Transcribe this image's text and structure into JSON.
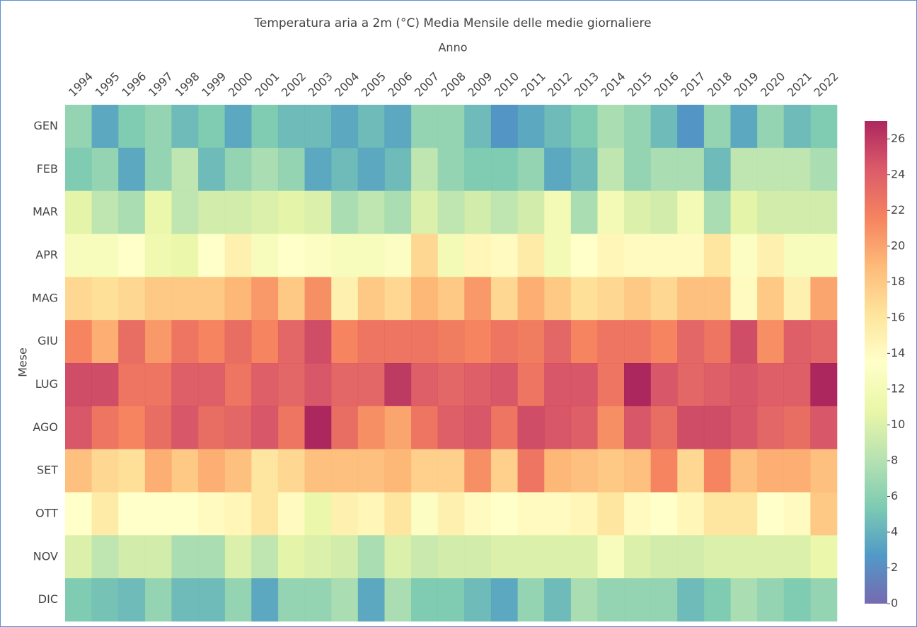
{
  "chart_data": {
    "type": "heatmap",
    "title": "Temperatura aria a 2m (°C) Media Mensile delle medie giornaliere",
    "x_label": "Anno",
    "y_label": "Mese",
    "x": [
      1994,
      1995,
      1996,
      1997,
      1998,
      1999,
      2000,
      2001,
      2002,
      2003,
      2004,
      2005,
      2006,
      2007,
      2008,
      2009,
      2010,
      2011,
      2012,
      2013,
      2014,
      2015,
      2016,
      2017,
      2018,
      2019,
      2020,
      2021,
      2022
    ],
    "categories": [
      "GEN",
      "FEB",
      "MAR",
      "APR",
      "MAG",
      "GIU",
      "LUG",
      "AGO",
      "SET",
      "OTT",
      "NOV",
      "DIC"
    ],
    "values": [
      [
        6.5,
        3.5,
        5.5,
        6.5,
        4.5,
        5.5,
        3.5,
        5.5,
        4.5,
        4.5,
        3.5,
        4.5,
        3.5,
        6.5,
        6.5,
        4.5,
        2.5,
        3.5,
        4.5,
        5.5,
        7.5,
        6.5,
        4.5,
        2.5,
        6.5,
        3.5,
        6.5,
        4.5,
        5.5
      ],
      [
        5.5,
        6.5,
        3.5,
        6.5,
        8.5,
        4.5,
        6.5,
        7.5,
        6.5,
        3.5,
        4.5,
        3.5,
        4.5,
        8.5,
        6.5,
        5.5,
        5.5,
        6.5,
        3.5,
        4.5,
        8.5,
        6.5,
        7.5,
        7.5,
        4.5,
        8.5,
        8.5,
        8.5,
        7.5
      ],
      [
        10.5,
        8.5,
        7.5,
        11,
        8.5,
        9.5,
        9.5,
        10,
        10.5,
        10,
        7.5,
        8.5,
        7.5,
        10,
        8.5,
        9.5,
        8.5,
        9.5,
        12,
        7.5,
        12,
        10,
        9.5,
        12,
        7.5,
        10.5,
        9.5,
        9.5,
        9.5
      ],
      [
        12.5,
        12.5,
        13.5,
        11.5,
        11,
        13.5,
        15,
        12.5,
        13.5,
        13,
        12.5,
        12.5,
        13,
        17,
        12,
        14.5,
        14,
        15.5,
        12,
        13.5,
        14.5,
        14,
        14,
        14,
        16,
        13,
        15,
        12.5,
        12.5
      ],
      [
        17,
        16.5,
        17,
        18,
        18,
        18,
        19,
        20.5,
        18,
        21,
        15,
        18,
        17,
        19,
        18,
        20.5,
        17,
        19.5,
        18,
        16.5,
        17,
        18,
        17,
        18.5,
        18.5,
        14,
        18,
        15,
        20
      ],
      [
        21.5,
        19.5,
        23,
        20.5,
        22.5,
        21.5,
        23,
        21.5,
        23.5,
        25,
        21.5,
        22.5,
        22.5,
        22.5,
        22,
        21.5,
        22.5,
        22,
        23.5,
        21.5,
        22.5,
        22.5,
        21.5,
        23.5,
        22.5,
        25,
        21,
        24,
        23.5
      ],
      [
        25,
        25,
        22.5,
        22.5,
        24,
        24,
        22.5,
        24,
        23.5,
        24.5,
        23.5,
        23.5,
        26,
        24,
        23.5,
        24,
        24.5,
        22.5,
        24.5,
        24.5,
        22.5,
        27,
        24.5,
        23.5,
        24,
        24.5,
        24,
        24,
        27
      ],
      [
        24.5,
        22.5,
        21.5,
        23,
        24.5,
        23,
        23.5,
        24.5,
        22.5,
        27,
        23,
        21,
        20,
        22.5,
        24,
        24.5,
        22.5,
        25,
        24.5,
        24,
        21,
        24.5,
        23,
        25,
        25,
        24.5,
        23.5,
        23,
        24.5
      ],
      [
        18.5,
        17,
        16.5,
        19.5,
        18,
        19.5,
        18.5,
        16,
        17,
        18.5,
        18.5,
        18.5,
        19,
        17.5,
        17.5,
        21,
        17.5,
        22.5,
        19,
        18.5,
        18,
        18.5,
        21.5,
        17,
        21.5,
        18.5,
        19.5,
        19.5,
        18.5
      ],
      [
        13.5,
        15.5,
        13.5,
        13.5,
        13.5,
        14,
        14.5,
        16,
        14,
        11,
        15,
        14.5,
        16,
        13,
        15,
        14,
        13.5,
        14,
        14,
        14.5,
        16,
        14,
        13.5,
        14.5,
        16,
        16,
        13.5,
        14,
        18
      ],
      [
        10,
        8.5,
        9.5,
        9.5,
        7.5,
        7.5,
        10,
        8.5,
        10.5,
        10,
        9.5,
        7.5,
        10,
        9,
        9.5,
        9.5,
        10,
        10,
        10,
        10,
        12.5,
        10,
        9.5,
        9.5,
        10,
        10,
        10,
        10,
        11
      ],
      [
        5.5,
        5,
        4.5,
        6.5,
        4.5,
        4.5,
        6.5,
        3.5,
        6.5,
        6.5,
        7.5,
        3.5,
        7.5,
        5.5,
        5.5,
        4.5,
        3.5,
        6.5,
        4.5,
        7.5,
        6.5,
        6.5,
        6.5,
        4.5,
        5.5,
        7.5,
        6.5,
        5.5,
        6.5
      ]
    ],
    "zlim": [
      0,
      27
    ],
    "zticks": [
      0,
      2,
      4,
      6,
      8,
      10,
      12,
      14,
      16,
      18,
      20,
      22,
      24,
      26
    ],
    "colorscale": [
      "#5e4fa2",
      "#3288bd",
      "#66c2a5",
      "#abdda4",
      "#e6f598",
      "#ffffbf",
      "#fee08b",
      "#fdae61",
      "#f46d43",
      "#d53e4f",
      "#9e0142"
    ]
  }
}
